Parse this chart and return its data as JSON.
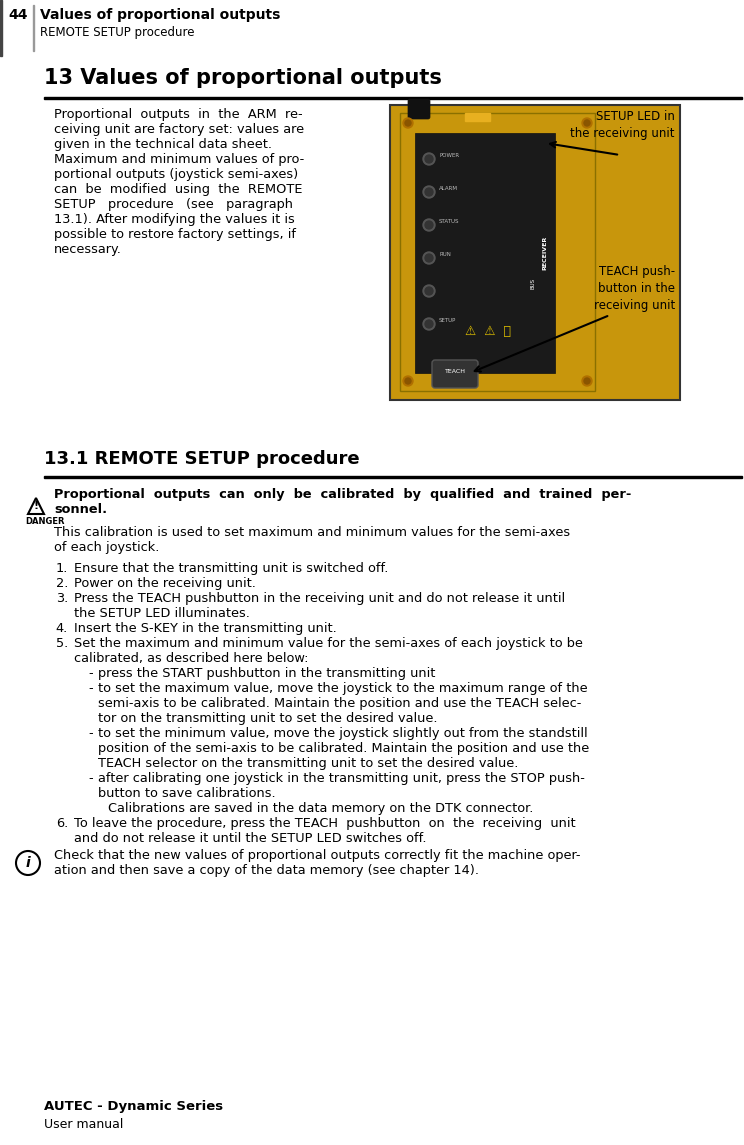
{
  "page_number": "44",
  "header_title": "Values of proportional outputs",
  "header_subtitle": "REMOTE SETUP procedure",
  "section_title": "13 Values of proportional outputs",
  "subsection_title": "13.1 REMOTE SETUP procedure",
  "image_label_1": "SETUP LED in\nthe receiving unit",
  "image_label_2": "TEACH push-\nbutton in the\nreceiving unit",
  "danger_line1": "Proportional  outputs  can  only  be  calibrated  by  qualified  and  trained  per-",
  "danger_line2": "sonnel.",
  "intro_line1": "This calibration is used to set maximum and minimum values for the semi-axes",
  "intro_line2": "of each joystick.",
  "body_lines": [
    "Proportional  outputs  in  the  ARM  re-",
    "ceiving unit are factory set: values are",
    "given in the technical data sheet.",
    "Maximum and minimum values of pro-",
    "portional outputs (joystick semi-axes)",
    "can  be  modified  using  the  REMOTE",
    "SETUP   procedure   (see   paragraph",
    "13.1). After modifying the values it is",
    "possible to restore factory settings, if",
    "necessary."
  ],
  "step1": "Ensure that the transmitting unit is switched off.",
  "step2": "Power on the receiving unit.",
  "step3a": "Press the TEACH pushbutton in the receiving unit and do not release it until",
  "step3b": "the SETUP LED illuminates.",
  "step4": "Insert the S-KEY in the transmitting unit.",
  "step5a": "Set the maximum and minimum value for the semi-axes of each joystick to be",
  "step5b": "calibrated, as described here below:",
  "b1": "press the START pushbutton in the transmitting unit",
  "b2a": "to set the maximum value, move the joystick to the maximum range of the",
  "b2b": "semi-axis to be calibrated. Maintain the position and use the TEACH selec-",
  "b2c": "tor on the transmitting unit to set the desired value.",
  "b3a": "to set the minimum value, move the joystick slightly out from the standstill",
  "b3b": "position of the semi-axis to be calibrated. Maintain the position and use the",
  "b3c": "TEACH selector on the transmitting unit to set the desired value.",
  "b4a": "after calibrating one joystick in the transmitting unit, press the STOP push-",
  "b4b": "button to save calibrations.",
  "b4c": "Calibrations are saved in the data memory on the DTK connector.",
  "step6a": "To leave the procedure, press the TEACH  pushbutton  on  the  receiving  unit",
  "step6b": "and do not release it until the SETUP LED switches off.",
  "note1": "Check that the new values of proportional outputs correctly fit the machine oper-",
  "note2": "ation and then save a copy of the data memory (see chapter 14).",
  "footer_title": "AUTEC - Dynamic Series",
  "footer_subtitle": "User manual"
}
